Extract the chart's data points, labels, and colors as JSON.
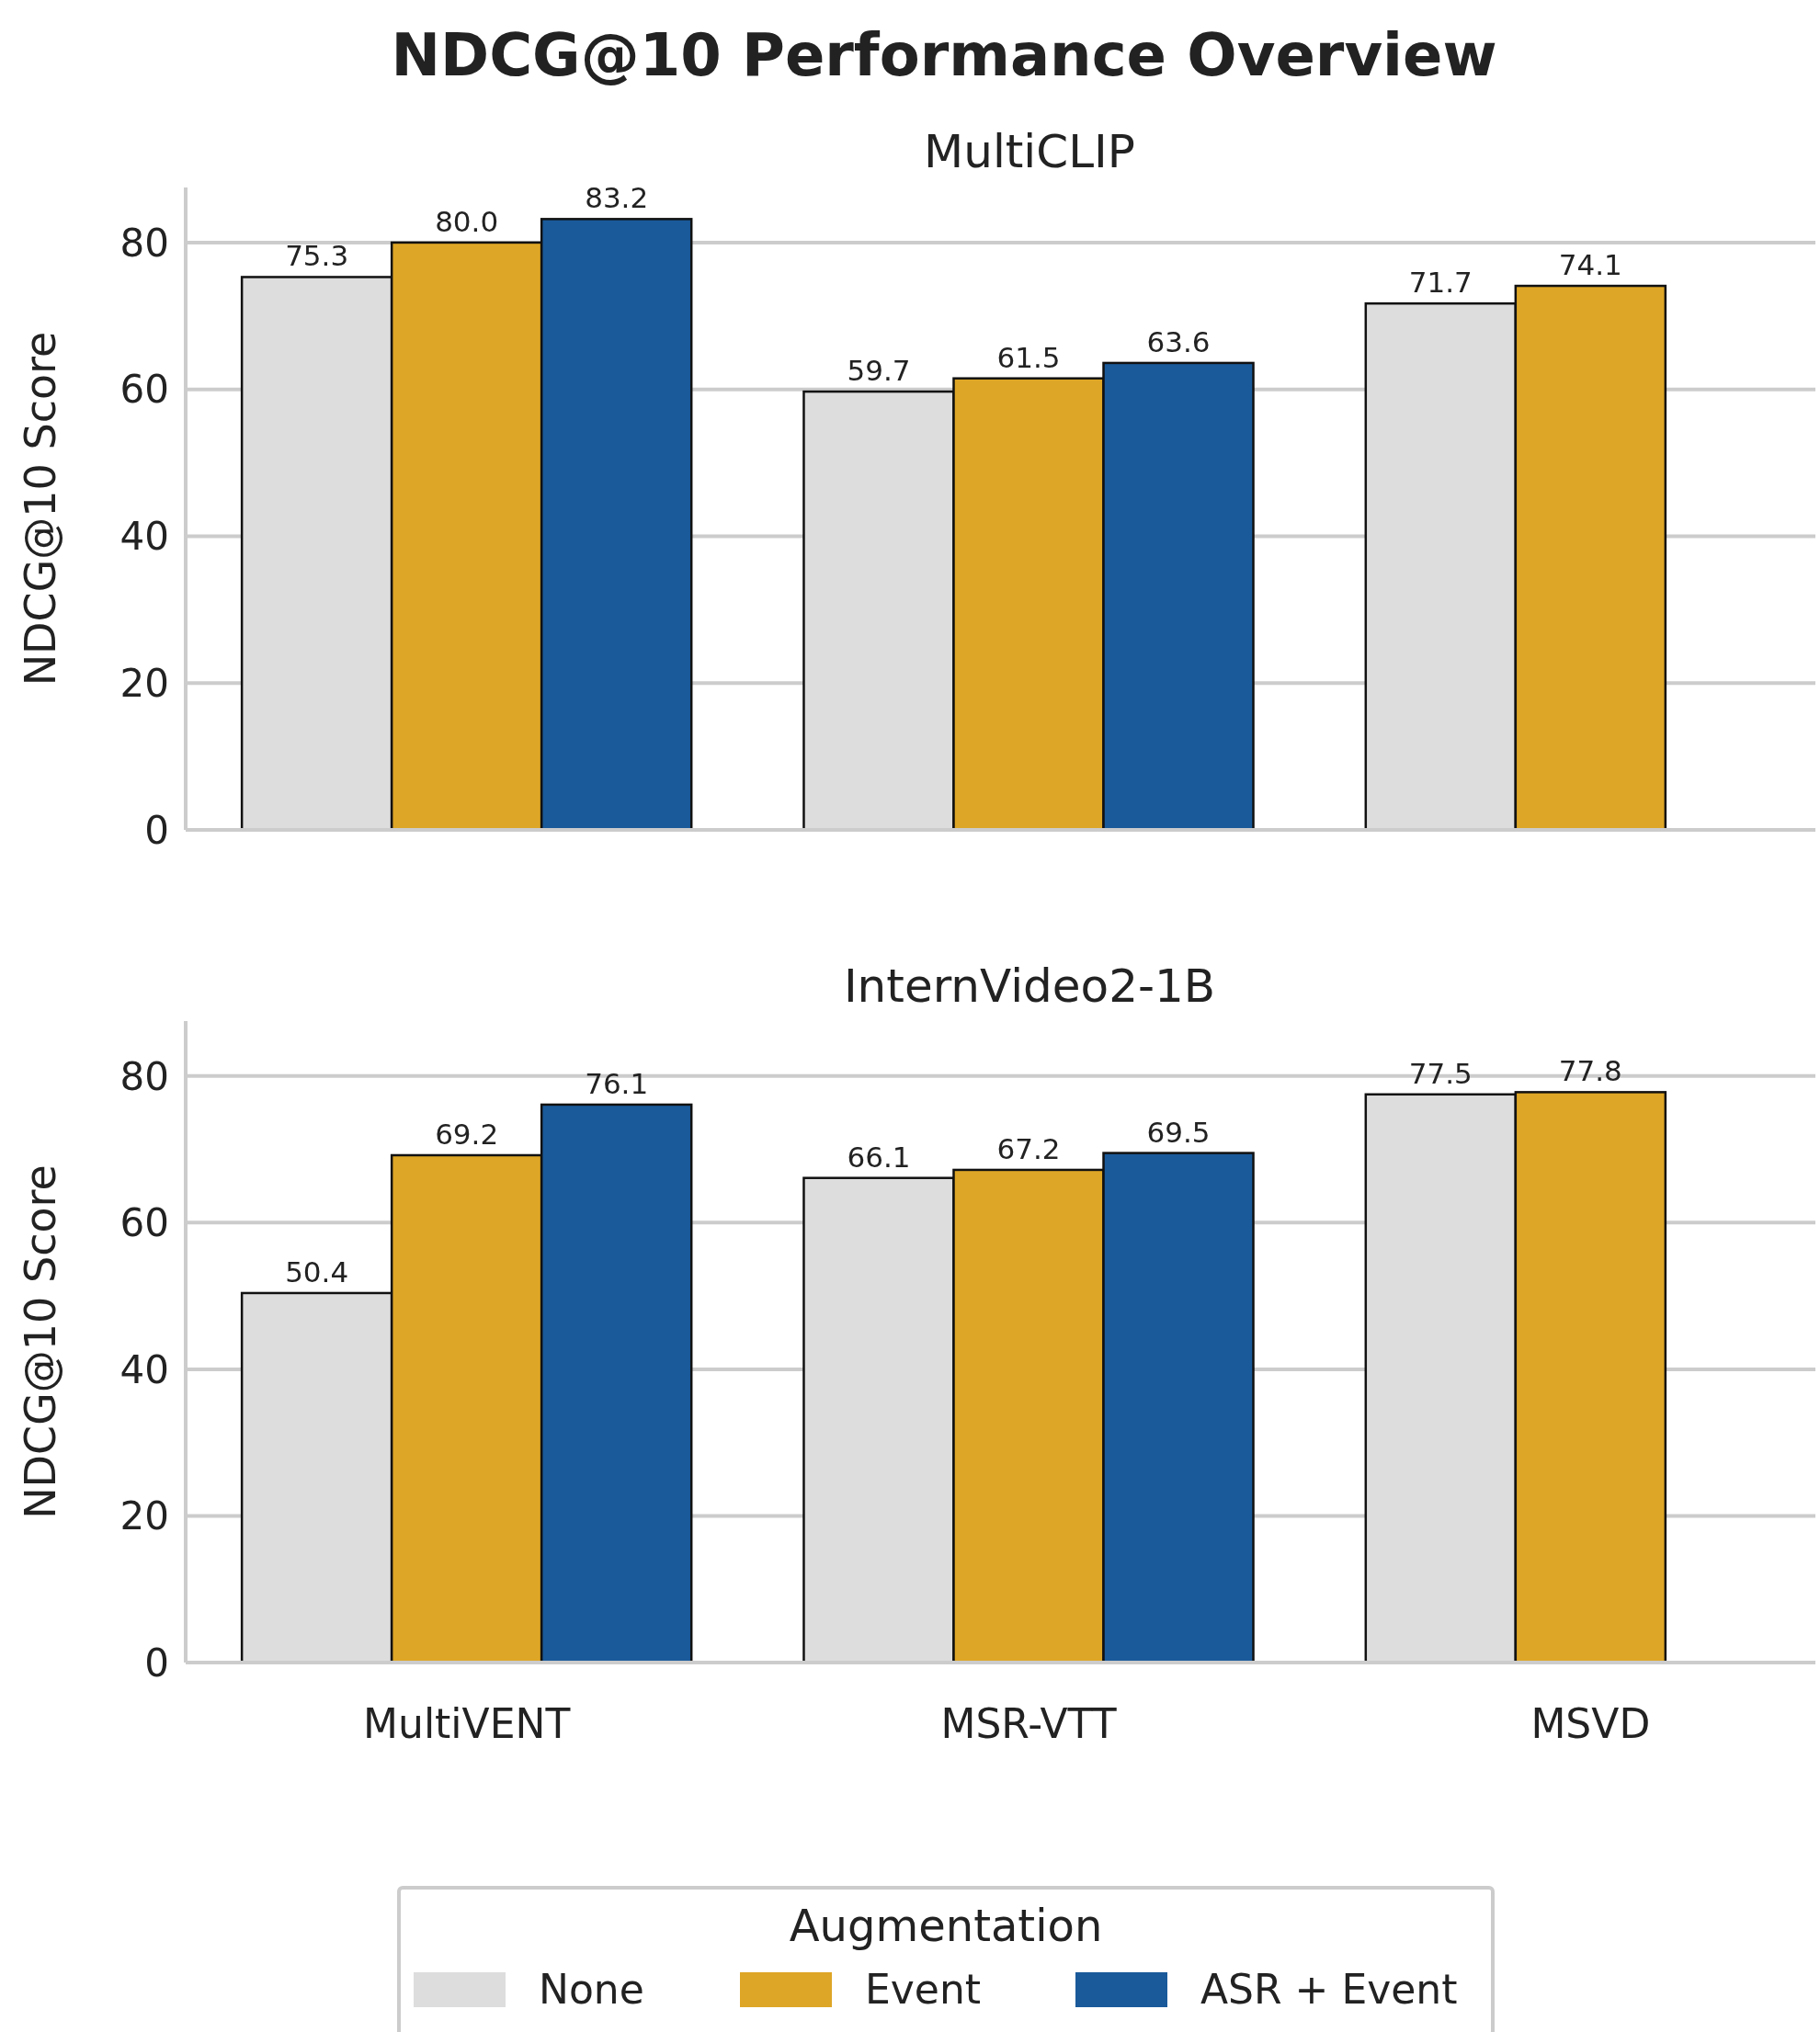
{
  "chart_data": [
    {
      "type": "bar",
      "title": "NDCG@10 Performance Overview",
      "subtitle": "MultiCLIP",
      "ylabel": "NDCG@10 Score",
      "legend_title": "Augmentation",
      "categories": [
        null,
        null,
        null
      ],
      "series": [
        {
          "name": "None",
          "color": "#dddddd",
          "values": [
            75.3,
            59.7,
            71.7
          ]
        },
        {
          "name": "Event",
          "color": "#dea626",
          "values": [
            80.0,
            61.5,
            74.1
          ],
          "value_labels": [
            "80.0",
            "61.5",
            "74.1"
          ]
        },
        {
          "name": "ASR + Event",
          "color": "#1a5a9a",
          "values": [
            83.2,
            63.6,
            null
          ]
        }
      ],
      "ylim": [
        0,
        87.5
      ],
      "yticks": [
        0,
        20,
        40,
        60,
        80
      ],
      "grid": "y",
      "data_labels": true,
      "tick_labels": "y",
      "legend": "bottom"
    },
    {
      "type": "bar",
      "title": "InternVideo2-1B",
      "ylabel": "NDCG@10 Score",
      "categories": [
        "MultiVENT",
        "MSR-VTT",
        "MSVD"
      ],
      "series": [
        {
          "color": "#dddddd",
          "values": [
            50.4,
            66.1,
            77.5
          ]
        },
        {
          "color": "#dea626",
          "values": [
            69.2,
            67.2,
            77.8
          ]
        },
        {
          "color": "#1a5a9a",
          "values": [
            76.1,
            69.5,
            null
          ]
        }
      ],
      "ylim": [
        0,
        87.5
      ],
      "yticks": [
        0,
        20,
        40,
        60,
        80
      ],
      "grid": "y",
      "data_labels": true
    }
  ]
}
